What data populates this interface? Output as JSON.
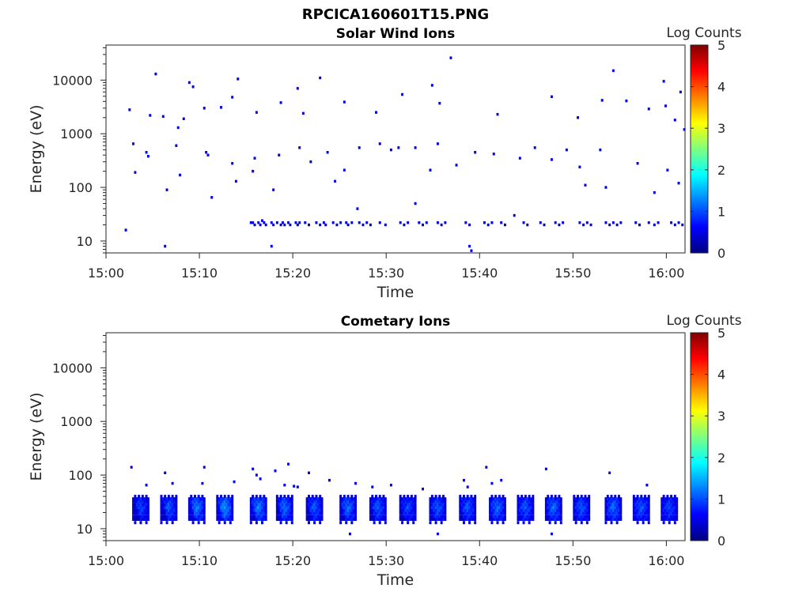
{
  "figure": {
    "title": "RPCICA160601T15.PNG"
  },
  "colorscale": {
    "stops": [
      "#00007f",
      "#0000ff",
      "#007fff",
      "#00ffff",
      "#7fff7f",
      "#ffff00",
      "#ff7f00",
      "#ff0000",
      "#7f0000"
    ]
  },
  "chart_data": [
    {
      "type": "heatmap",
      "title": "Solar Wind Ions",
      "xlabel": "Time",
      "ylabel": "Energy (eV)",
      "xlim": [
        "15:00",
        "16:02"
      ],
      "x_ticks": [
        "15:00",
        "15:10",
        "15:20",
        "15:30",
        "15:40",
        "15:50",
        "16:00"
      ],
      "ylim": [
        6,
        45000
      ],
      "yscale": "log",
      "y_ticks": [
        10,
        100,
        1000,
        10000
      ],
      "y_tick_labels": [
        "10",
        "100",
        "1000",
        "10000"
      ],
      "colorbar": {
        "label": "Log Counts",
        "range": [
          0,
          5
        ],
        "ticks": [
          "0",
          "1",
          "2",
          "3",
          "4",
          "5"
        ]
      },
      "grid": false,
      "cells": [
        {
          "t": 15.4,
          "e": 22,
          "v": 0.5
        },
        {
          "t": 15.6,
          "e": 22,
          "v": 0.5
        },
        {
          "t": 15.8,
          "e": 20,
          "v": 0.5
        },
        {
          "t": 16.2,
          "e": 22,
          "v": 0.5
        },
        {
          "t": 16.4,
          "e": 20,
          "v": 0.5
        },
        {
          "t": 16.6,
          "e": 24,
          "v": 0.5
        },
        {
          "t": 16.8,
          "e": 22,
          "v": 0.5
        },
        {
          "t": 17.0,
          "e": 20,
          "v": 0.5
        },
        {
          "t": 17.6,
          "e": 22,
          "v": 0.5
        },
        {
          "t": 17.8,
          "e": 20,
          "v": 0.5
        },
        {
          "t": 18.2,
          "e": 22,
          "v": 0.5
        },
        {
          "t": 18.6,
          "e": 20,
          "v": 0.5
        },
        {
          "t": 18.8,
          "e": 22,
          "v": 0.5
        },
        {
          "t": 19.0,
          "e": 20,
          "v": 0.5
        },
        {
          "t": 19.4,
          "e": 22,
          "v": 0.5
        },
        {
          "t": 19.6,
          "e": 20,
          "v": 0.5
        },
        {
          "t": 20.2,
          "e": 22,
          "v": 0.5
        },
        {
          "t": 20.4,
          "e": 20,
          "v": 0.5
        },
        {
          "t": 20.6,
          "e": 22,
          "v": 0.5
        },
        {
          "t": 21.2,
          "e": 22,
          "v": 0.5
        },
        {
          "t": 21.6,
          "e": 20,
          "v": 0.5
        },
        {
          "t": 22.4,
          "e": 22,
          "v": 0.5
        },
        {
          "t": 22.8,
          "e": 20,
          "v": 0.5
        },
        {
          "t": 23.2,
          "e": 22,
          "v": 0.5
        },
        {
          "t": 23.4,
          "e": 20,
          "v": 0.5
        },
        {
          "t": 24.2,
          "e": 22,
          "v": 0.5
        },
        {
          "t": 24.6,
          "e": 20,
          "v": 0.5
        },
        {
          "t": 25.0,
          "e": 22,
          "v": 0.5
        },
        {
          "t": 25.6,
          "e": 22,
          "v": 0.5
        },
        {
          "t": 25.8,
          "e": 20,
          "v": 0.5
        },
        {
          "t": 26.2,
          "e": 22,
          "v": 0.5
        },
        {
          "t": 27.0,
          "e": 22,
          "v": 0.5
        },
        {
          "t": 27.4,
          "e": 20,
          "v": 0.5
        },
        {
          "t": 27.8,
          "e": 22,
          "v": 0.5
        },
        {
          "t": 28.2,
          "e": 20,
          "v": 0.5
        },
        {
          "t": 29.2,
          "e": 22,
          "v": 0.5
        },
        {
          "t": 29.8,
          "e": 20,
          "v": 0.5
        },
        {
          "t": 31.4,
          "e": 22,
          "v": 0.5
        },
        {
          "t": 31.8,
          "e": 20,
          "v": 0.5
        },
        {
          "t": 32.2,
          "e": 22,
          "v": 0.5
        },
        {
          "t": 33.4,
          "e": 22,
          "v": 0.5
        },
        {
          "t": 33.8,
          "e": 20,
          "v": 0.5
        },
        {
          "t": 34.2,
          "e": 22,
          "v": 0.5
        },
        {
          "t": 35.4,
          "e": 22,
          "v": 0.5
        },
        {
          "t": 35.8,
          "e": 20,
          "v": 0.5
        },
        {
          "t": 36.2,
          "e": 22,
          "v": 0.5
        },
        {
          "t": 38.4,
          "e": 22,
          "v": 0.5
        },
        {
          "t": 38.8,
          "e": 20,
          "v": 0.5
        },
        {
          "t": 40.4,
          "e": 22,
          "v": 0.5
        },
        {
          "t": 40.8,
          "e": 20,
          "v": 0.5
        },
        {
          "t": 41.2,
          "e": 22,
          "v": 0.5
        },
        {
          "t": 42.2,
          "e": 22,
          "v": 0.5
        },
        {
          "t": 42.6,
          "e": 20,
          "v": 0.5
        },
        {
          "t": 44.6,
          "e": 22,
          "v": 0.5
        },
        {
          "t": 45.0,
          "e": 20,
          "v": 0.5
        },
        {
          "t": 46.4,
          "e": 22,
          "v": 0.5
        },
        {
          "t": 46.8,
          "e": 20,
          "v": 0.5
        },
        {
          "t": 48.0,
          "e": 22,
          "v": 0.5
        },
        {
          "t": 48.4,
          "e": 20,
          "v": 0.5
        },
        {
          "t": 48.8,
          "e": 22,
          "v": 0.5
        },
        {
          "t": 50.6,
          "e": 22,
          "v": 0.5
        },
        {
          "t": 51.0,
          "e": 20,
          "v": 0.5
        },
        {
          "t": 51.4,
          "e": 22,
          "v": 0.5
        },
        {
          "t": 51.8,
          "e": 20,
          "v": 0.5
        },
        {
          "t": 53.4,
          "e": 22,
          "v": 0.5
        },
        {
          "t": 53.8,
          "e": 20,
          "v": 0.5
        },
        {
          "t": 54.2,
          "e": 22,
          "v": 0.5
        },
        {
          "t": 54.6,
          "e": 20,
          "v": 0.5
        },
        {
          "t": 55.0,
          "e": 22,
          "v": 0.5
        },
        {
          "t": 56.6,
          "e": 22,
          "v": 0.5
        },
        {
          "t": 57.0,
          "e": 20,
          "v": 0.5
        },
        {
          "t": 58.0,
          "e": 22,
          "v": 0.5
        },
        {
          "t": 58.6,
          "e": 20,
          "v": 0.5
        },
        {
          "t": 59.0,
          "e": 22,
          "v": 0.5
        },
        {
          "t": 60.4,
          "e": 22,
          "v": 0.5
        },
        {
          "t": 60.8,
          "e": 20,
          "v": 0.5
        },
        {
          "t": 61.2,
          "e": 22,
          "v": 0.5
        },
        {
          "t": 61.6,
          "e": 20,
          "v": 0.5
        },
        {
          "t": 2.0,
          "e": 16,
          "v": 0.5
        },
        {
          "t": 6.2,
          "e": 8,
          "v": 0.5
        },
        {
          "t": 17.6,
          "e": 8,
          "v": 0.5
        },
        {
          "t": 38.8,
          "e": 8,
          "v": 0.5
        },
        {
          "t": 39.0,
          "e": 6.6,
          "v": 0.5
        },
        {
          "t": 26.8,
          "e": 40,
          "v": 0.5
        },
        {
          "t": 43.6,
          "e": 30,
          "v": 0.5
        },
        {
          "t": 33.0,
          "e": 50,
          "v": 0.5
        },
        {
          "t": 4.2,
          "e": 450,
          "v": 0.6
        },
        {
          "t": 4.4,
          "e": 380,
          "v": 0.6
        },
        {
          "t": 10.6,
          "e": 450,
          "v": 0.6
        },
        {
          "t": 10.8,
          "e": 400,
          "v": 0.6
        },
        {
          "t": 15.8,
          "e": 350,
          "v": 0.5
        },
        {
          "t": 23.6,
          "e": 450,
          "v": 0.5
        },
        {
          "t": 27.0,
          "e": 550,
          "v": 0.5
        },
        {
          "t": 30.4,
          "e": 500,
          "v": 0.5
        },
        {
          "t": 33.0,
          "e": 550,
          "v": 0.5
        },
        {
          "t": 39.4,
          "e": 450,
          "v": 0.5
        },
        {
          "t": 45.8,
          "e": 550,
          "v": 0.5
        },
        {
          "t": 49.2,
          "e": 500,
          "v": 0.5
        },
        {
          "t": 52.8,
          "e": 500,
          "v": 0.5
        },
        {
          "t": 61.8,
          "e": 1200,
          "v": 0.5
        },
        {
          "t": 5.2,
          "e": 13000,
          "v": 0.5
        },
        {
          "t": 8.8,
          "e": 9000,
          "v": 0.5
        },
        {
          "t": 9.2,
          "e": 7500,
          "v": 0.5
        },
        {
          "t": 14.0,
          "e": 10500,
          "v": 0.5
        },
        {
          "t": 20.4,
          "e": 7000,
          "v": 0.5
        },
        {
          "t": 22.8,
          "e": 11000,
          "v": 0.5
        },
        {
          "t": 34.8,
          "e": 8000,
          "v": 0.5
        },
        {
          "t": 36.8,
          "e": 26000,
          "v": 0.5
        },
        {
          "t": 54.2,
          "e": 15000,
          "v": 0.5
        },
        {
          "t": 59.6,
          "e": 9500,
          "v": 0.5
        },
        {
          "t": 61.4,
          "e": 6000,
          "v": 0.5
        },
        {
          "t": 2.4,
          "e": 2800,
          "v": 0.5
        },
        {
          "t": 4.6,
          "e": 2200,
          "v": 0.5
        },
        {
          "t": 6.0,
          "e": 2100,
          "v": 0.5
        },
        {
          "t": 7.6,
          "e": 1300,
          "v": 0.5
        },
        {
          "t": 8.2,
          "e": 1900,
          "v": 0.5
        },
        {
          "t": 10.4,
          "e": 3000,
          "v": 0.5
        },
        {
          "t": 12.2,
          "e": 3100,
          "v": 0.5
        },
        {
          "t": 13.4,
          "e": 4800,
          "v": 0.5
        },
        {
          "t": 16.0,
          "e": 2500,
          "v": 0.5
        },
        {
          "t": 18.6,
          "e": 3800,
          "v": 0.5
        },
        {
          "t": 21.0,
          "e": 2400,
          "v": 0.5
        },
        {
          "t": 25.4,
          "e": 3900,
          "v": 0.5
        },
        {
          "t": 28.8,
          "e": 2500,
          "v": 0.5
        },
        {
          "t": 31.6,
          "e": 5400,
          "v": 0.5
        },
        {
          "t": 35.6,
          "e": 3700,
          "v": 0.5
        },
        {
          "t": 41.8,
          "e": 2300,
          "v": 0.5
        },
        {
          "t": 47.6,
          "e": 4900,
          "v": 0.5
        },
        {
          "t": 50.4,
          "e": 2000,
          "v": 0.5
        },
        {
          "t": 53.0,
          "e": 4200,
          "v": 0.5
        },
        {
          "t": 55.6,
          "e": 4100,
          "v": 0.5
        },
        {
          "t": 58.0,
          "e": 2900,
          "v": 0.5
        },
        {
          "t": 59.8,
          "e": 3300,
          "v": 0.5
        },
        {
          "t": 60.8,
          "e": 1800,
          "v": 0.5
        },
        {
          "t": 2.8,
          "e": 650,
          "v": 0.5
        },
        {
          "t": 3.0,
          "e": 190,
          "v": 0.5
        },
        {
          "t": 6.4,
          "e": 90,
          "v": 0.5
        },
        {
          "t": 7.4,
          "e": 600,
          "v": 0.5
        },
        {
          "t": 7.8,
          "e": 170,
          "v": 0.5
        },
        {
          "t": 11.2,
          "e": 65,
          "v": 0.5
        },
        {
          "t": 13.4,
          "e": 280,
          "v": 0.5
        },
        {
          "t": 13.8,
          "e": 130,
          "v": 0.5
        },
        {
          "t": 15.6,
          "e": 200,
          "v": 0.5
        },
        {
          "t": 17.8,
          "e": 90,
          "v": 0.5
        },
        {
          "t": 18.4,
          "e": 400,
          "v": 0.5
        },
        {
          "t": 20.6,
          "e": 550,
          "v": 0.5
        },
        {
          "t": 21.8,
          "e": 300,
          "v": 0.5
        },
        {
          "t": 24.4,
          "e": 130,
          "v": 0.5
        },
        {
          "t": 25.4,
          "e": 210,
          "v": 0.5
        },
        {
          "t": 29.2,
          "e": 650,
          "v": 0.5
        },
        {
          "t": 31.2,
          "e": 550,
          "v": 0.5
        },
        {
          "t": 34.6,
          "e": 210,
          "v": 0.5
        },
        {
          "t": 35.4,
          "e": 650,
          "v": 0.5
        },
        {
          "t": 37.4,
          "e": 260,
          "v": 0.5
        },
        {
          "t": 41.4,
          "e": 420,
          "v": 0.5
        },
        {
          "t": 44.2,
          "e": 350,
          "v": 0.5
        },
        {
          "t": 47.6,
          "e": 330,
          "v": 0.5
        },
        {
          "t": 50.6,
          "e": 240,
          "v": 0.5
        },
        {
          "t": 51.2,
          "e": 110,
          "v": 0.5
        },
        {
          "t": 53.4,
          "e": 100,
          "v": 0.5
        },
        {
          "t": 56.8,
          "e": 280,
          "v": 0.5
        },
        {
          "t": 58.6,
          "e": 80,
          "v": 0.5
        },
        {
          "t": 60.0,
          "e": 210,
          "v": 0.5
        },
        {
          "t": 61.2,
          "e": 120,
          "v": 0.5
        }
      ]
    },
    {
      "type": "heatmap",
      "title": "Cometary Ions",
      "xlabel": "Time",
      "ylabel": "Energy (eV)",
      "xlim": [
        "15:00",
        "16:02"
      ],
      "x_ticks": [
        "15:00",
        "15:10",
        "15:20",
        "15:30",
        "15:40",
        "15:50",
        "16:00"
      ],
      "ylim": [
        6,
        45000
      ],
      "yscale": "log",
      "y_ticks": [
        10,
        100,
        1000,
        10000
      ],
      "y_tick_labels": [
        "10",
        "100",
        "1000",
        "10000"
      ],
      "colorbar": {
        "label": "Log Counts",
        "range": [
          0,
          5
        ],
        "ticks": [
          "0",
          "1",
          "2",
          "3",
          "4",
          "5"
        ]
      },
      "grid": false,
      "bursts": [
        {
          "t": 3.6,
          "v": 1.0
        },
        {
          "t": 6.6,
          "v": 1.1
        },
        {
          "t": 9.6,
          "v": 1.3
        },
        {
          "t": 12.6,
          "v": 1.4
        },
        {
          "t": 16.2,
          "v": 1.3
        },
        {
          "t": 19.0,
          "v": 1.2
        },
        {
          "t": 22.2,
          "v": 1.1
        },
        {
          "t": 25.8,
          "v": 1.2
        },
        {
          "t": 29.0,
          "v": 1.1
        },
        {
          "t": 32.2,
          "v": 1.0
        },
        {
          "t": 35.4,
          "v": 1.1
        },
        {
          "t": 38.6,
          "v": 1.1
        },
        {
          "t": 41.8,
          "v": 1.2
        },
        {
          "t": 44.8,
          "v": 1.1
        },
        {
          "t": 47.8,
          "v": 1.2
        },
        {
          "t": 50.8,
          "v": 1.1
        },
        {
          "t": 54.2,
          "v": 1.2
        },
        {
          "t": 57.2,
          "v": 1.1
        },
        {
          "t": 60.2,
          "v": 1.0
        }
      ],
      "cells": [
        {
          "t": 2.6,
          "e": 140,
          "v": 0.5
        },
        {
          "t": 4.2,
          "e": 65,
          "v": 0.5
        },
        {
          "t": 6.2,
          "e": 110,
          "v": 0.5
        },
        {
          "t": 7.0,
          "e": 70,
          "v": 0.5
        },
        {
          "t": 10.4,
          "e": 140,
          "v": 0.5
        },
        {
          "t": 10.2,
          "e": 70,
          "v": 0.5
        },
        {
          "t": 13.6,
          "e": 75,
          "v": 0.5
        },
        {
          "t": 15.6,
          "e": 130,
          "v": 0.5
        },
        {
          "t": 16.0,
          "e": 100,
          "v": 0.6
        },
        {
          "t": 16.4,
          "e": 85,
          "v": 0.6
        },
        {
          "t": 18.0,
          "e": 120,
          "v": 0.5
        },
        {
          "t": 19.4,
          "e": 160,
          "v": 0.6
        },
        {
          "t": 19.0,
          "e": 65,
          "v": 0.5
        },
        {
          "t": 20.0,
          "e": 62,
          "v": 0.5
        },
        {
          "t": 20.4,
          "e": 60,
          "v": 0.5
        },
        {
          "t": 21.6,
          "e": 110,
          "v": 0.5
        },
        {
          "t": 23.8,
          "e": 80,
          "v": 0.5
        },
        {
          "t": 26.6,
          "e": 70,
          "v": 0.5
        },
        {
          "t": 28.4,
          "e": 60,
          "v": 0.5
        },
        {
          "t": 30.4,
          "e": 65,
          "v": 0.5
        },
        {
          "t": 33.8,
          "e": 55,
          "v": 0.5
        },
        {
          "t": 38.2,
          "e": 80,
          "v": 0.6
        },
        {
          "t": 38.6,
          "e": 60,
          "v": 0.5
        },
        {
          "t": 40.6,
          "e": 140,
          "v": 0.5
        },
        {
          "t": 41.2,
          "e": 70,
          "v": 0.5
        },
        {
          "t": 42.2,
          "e": 80,
          "v": 0.5
        },
        {
          "t": 47.0,
          "e": 130,
          "v": 0.5
        },
        {
          "t": 53.8,
          "e": 110,
          "v": 0.5
        },
        {
          "t": 57.8,
          "e": 65,
          "v": 0.5
        },
        {
          "t": 26.0,
          "e": 8,
          "v": 0.5
        },
        {
          "t": 35.4,
          "e": 8,
          "v": 0.5
        },
        {
          "t": 47.6,
          "e": 8,
          "v": 0.5
        }
      ]
    }
  ]
}
